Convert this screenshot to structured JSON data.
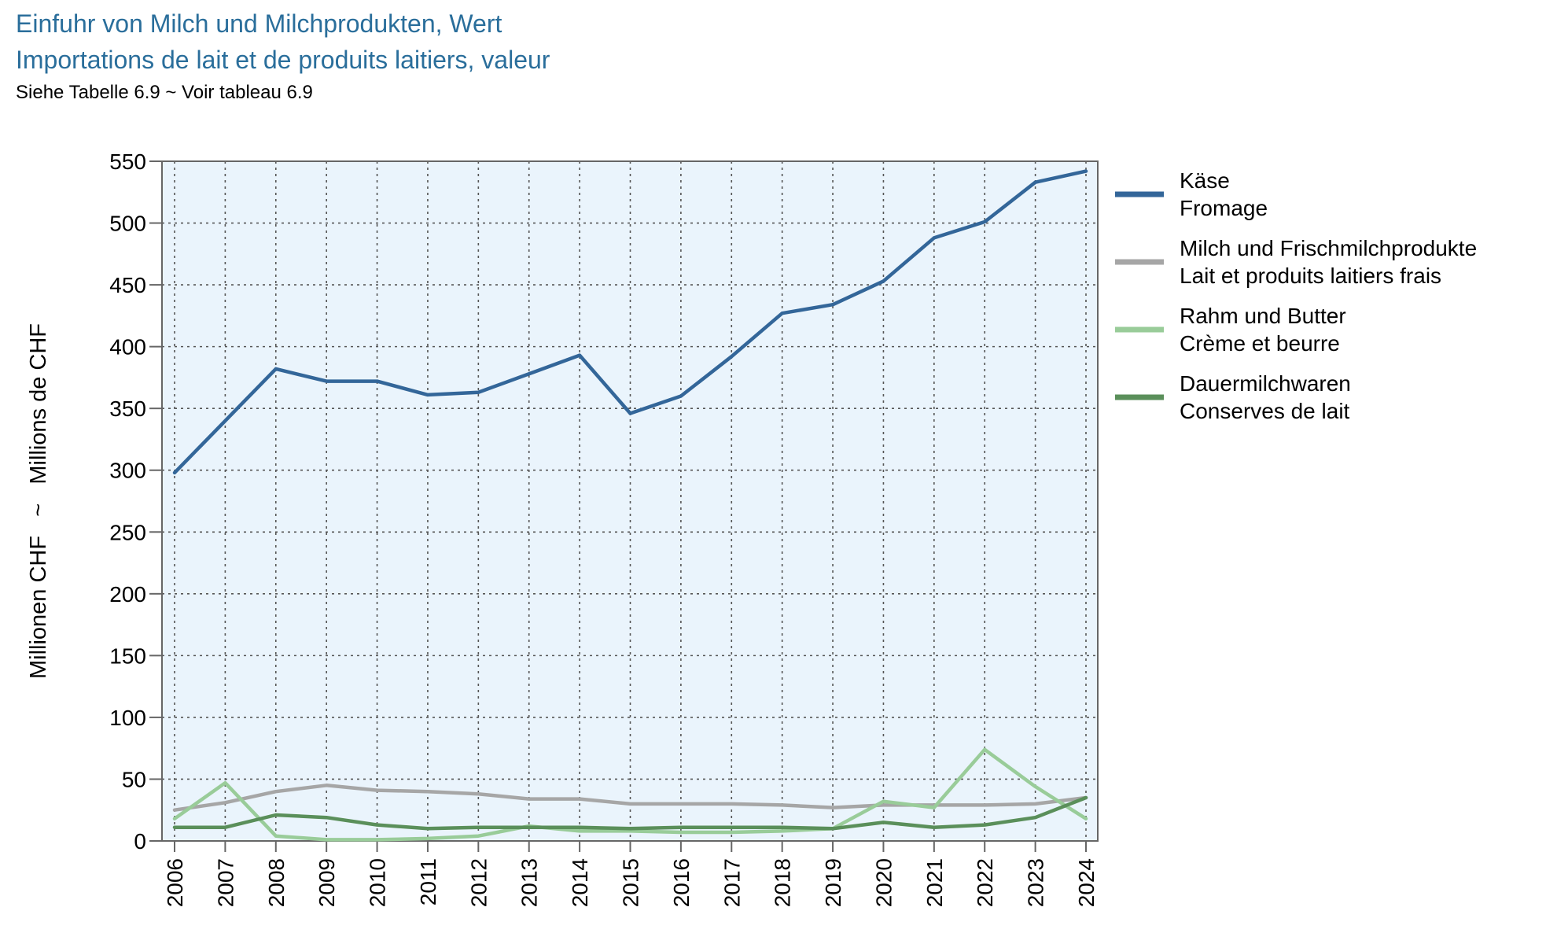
{
  "header": {
    "title_de": "Einfuhr von Milch und Milchprodukten, Wert",
    "title_fr": "Importations de lait et de produits laitiers, valeur",
    "subtitle": "Siehe Tabelle 6.9   ~   Voir tableau 6.9"
  },
  "chart_data": {
    "type": "line",
    "ylabel": "Millionen CHF   ~   Millions de CHF",
    "xlabel": "",
    "ylim": [
      0,
      550
    ],
    "yticks": [
      0,
      50,
      100,
      150,
      200,
      250,
      300,
      350,
      400,
      450,
      500,
      550
    ],
    "grid": true,
    "legend": "right",
    "x": [
      "2006",
      "2007",
      "2008",
      "2009",
      "2010",
      "2011",
      "2012",
      "2013",
      "2014",
      "2015",
      "2016",
      "2017",
      "2018",
      "2019",
      "2020",
      "2021",
      "2022",
      "2023",
      "2024"
    ],
    "series": [
      {
        "name": "Käse",
        "name_fr": "Fromage",
        "color": "#336699",
        "values": [
          298,
          340,
          382,
          372,
          372,
          361,
          363,
          378,
          393,
          346,
          360,
          392,
          427,
          434,
          453,
          488,
          501,
          533,
          542
        ]
      },
      {
        "name": "Milch und Frischmilchprodukte",
        "name_fr": "Lait et produits laitiers frais",
        "color": "#a6a6a6",
        "values": [
          25,
          31,
          40,
          45,
          41,
          40,
          38,
          34,
          34,
          30,
          30,
          30,
          29,
          27,
          29,
          29,
          29,
          30,
          35
        ]
      },
      {
        "name": "Rahm und Butter",
        "name_fr": "Crème et beurre",
        "color": "#99cc99",
        "values": [
          18,
          47,
          4,
          1,
          1,
          2,
          4,
          12,
          8,
          8,
          7,
          7,
          8,
          10,
          32,
          27,
          74,
          44,
          18
        ]
      },
      {
        "name": "Dauermilchwaren",
        "name_fr": "Conserves de lait",
        "color": "#5a8f5a",
        "values": [
          11,
          11,
          21,
          19,
          13,
          10,
          11,
          11,
          11,
          10,
          11,
          11,
          11,
          10,
          15,
          11,
          13,
          19,
          35
        ]
      }
    ]
  }
}
